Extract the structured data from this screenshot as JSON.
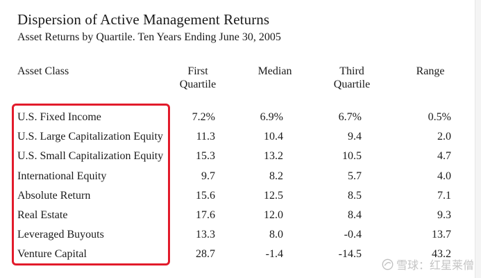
{
  "document": {
    "title": "Dispersion of Active Management Returns",
    "subtitle": "Asset Returns by Quartile. Ten Years Ending June 30, 2005"
  },
  "table": {
    "headers": {
      "asset_class": "Asset Class",
      "first_quartile_line1": "First",
      "first_quartile_line2": "Quartile",
      "median": "Median",
      "third_quartile_line1": "Third",
      "third_quartile_line2": "Quartile",
      "range": "Range"
    },
    "rows": [
      {
        "asset": "U.S. Fixed Income",
        "first": "7.2%",
        "median": "6.9%",
        "third": "6.7%",
        "range": "0.5%"
      },
      {
        "asset": "U.S. Large Capitalization Equity",
        "first": "11.3",
        "median": "10.4",
        "third": "9.4",
        "range": "2.0"
      },
      {
        "asset": "U.S. Small Capitalization Equity",
        "first": "15.3",
        "median": "13.2",
        "third": "10.5",
        "range": "4.7"
      },
      {
        "asset": "International Equity",
        "first": "9.7",
        "median": "8.2",
        "third": "5.7",
        "range": "4.0"
      },
      {
        "asset": "Absolute Return",
        "first": "15.6",
        "median": "12.5",
        "third": "8.5",
        "range": "7.1"
      },
      {
        "asset": "Real Estate",
        "first": "17.6",
        "median": "12.0",
        "third": "8.4",
        "range": "9.3"
      },
      {
        "asset": "Leveraged Buyouts",
        "first": "13.3",
        "median": "8.0",
        "third": "-0.4",
        "range": "13.7"
      },
      {
        "asset": "Venture Capital",
        "first": "28.7",
        "median": "-1.4",
        "third": "-14.5",
        "range": "43.2"
      }
    ]
  },
  "annotation": {
    "color": "#e21b2b"
  },
  "watermark": {
    "text": "雪球：红星莱僧",
    "icon": "snowball-logo-icon"
  }
}
